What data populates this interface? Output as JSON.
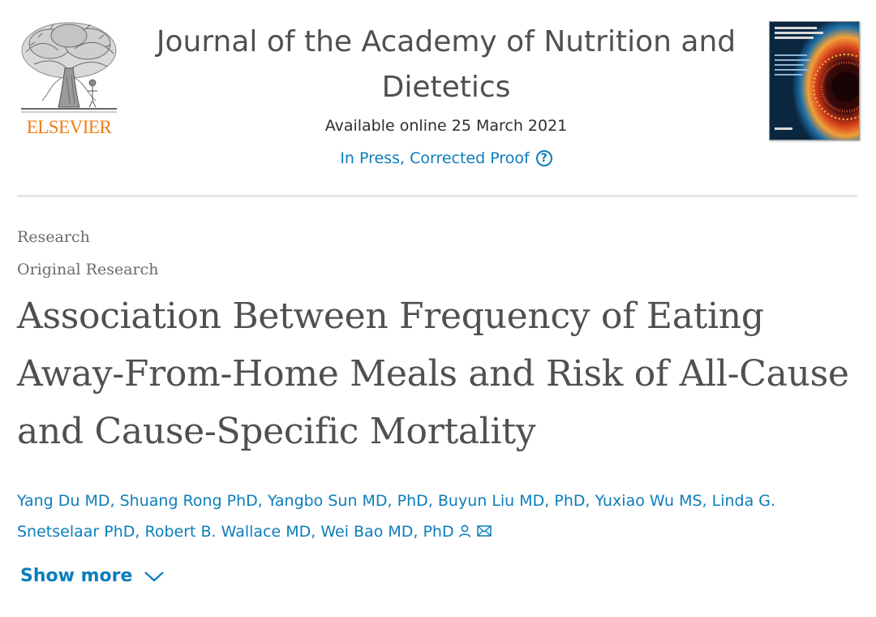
{
  "header": {
    "publisher_logo": {
      "wordmark": "ELSEVIER",
      "icon": "elsevier-tree-icon",
      "color": "#f07c10"
    },
    "journal_title": "Journal of the Academy of Nutrition and Dietetics",
    "available_online": "Available online 25 March 2021",
    "status": "In Press, Corrected Proof",
    "status_help_icon": "help-circle-icon",
    "cover_icon": "journal-cover-thumbnail"
  },
  "article": {
    "section": "Research",
    "subsection": "Original Research",
    "title": "Association Between Frequency of Eating Away-From-Home Meals and Risk of All-Cause and Cause-Specific Mortality",
    "authors": [
      "Yang Du MD",
      "Shuang Rong PhD",
      "Yangbo Sun MD, PhD",
      "Buyun Liu MD, PhD",
      "Yuxiao Wu MS",
      "Linda G. Snetselaar PhD",
      "Robert B. Wallace MD",
      "Wei Bao MD, PhD"
    ],
    "author_separator": ", ",
    "corresponding_icons": [
      "person-icon",
      "envelope-icon"
    ],
    "show_more_label": "Show more",
    "show_more_icon": "chevron-down-icon"
  },
  "colors": {
    "link": "#0c7dbb",
    "text": "#505050",
    "muted": "#6b6b6b",
    "divider": "#e6e6e6",
    "brand": "#f07c10"
  }
}
